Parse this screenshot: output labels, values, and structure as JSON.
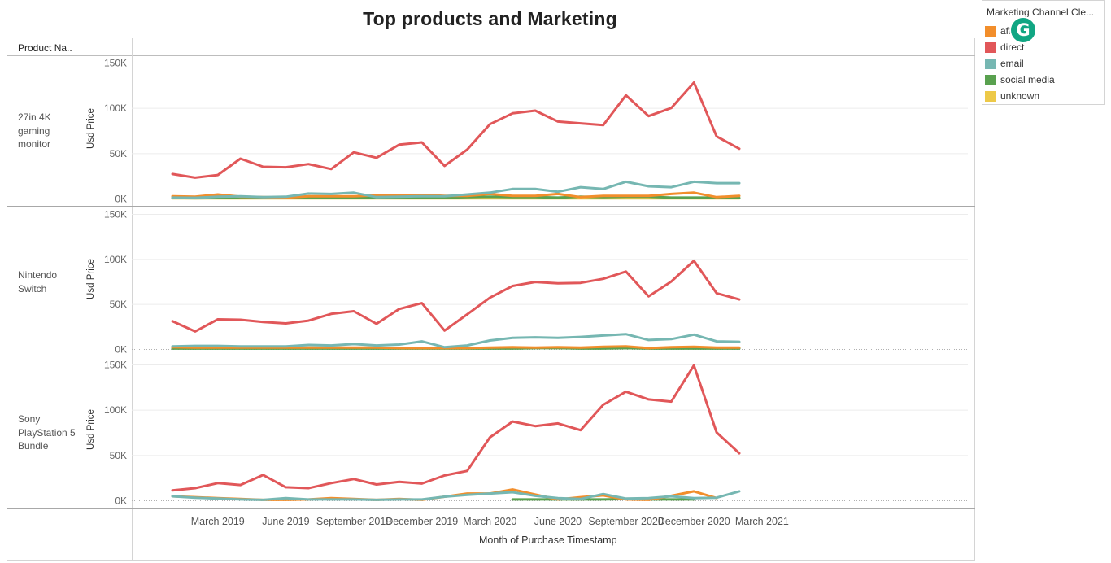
{
  "title": "Top products and Marketing",
  "row_header": "Product Na..",
  "x_axis_title": "Month of Purchase Timestamp",
  "legend": {
    "title": "Marketing Channel Cle...",
    "items": [
      {
        "label": "affiliate",
        "color": "#f28e2b"
      },
      {
        "label": "direct",
        "color": "#e15759"
      },
      {
        "label": "email",
        "color": "#76b7b2"
      },
      {
        "label": "social media",
        "color": "#59a14f"
      },
      {
        "label": "unknown",
        "color": "#edc948"
      }
    ]
  },
  "overlay": {
    "icon": "grammarly-icon",
    "glyph": "G"
  },
  "chart_data": {
    "type": "line",
    "x": [
      "2019-01",
      "2019-02",
      "2019-03",
      "2019-04",
      "2019-05",
      "2019-06",
      "2019-07",
      "2019-08",
      "2019-09",
      "2019-10",
      "2019-11",
      "2019-12",
      "2020-01",
      "2020-02",
      "2020-03",
      "2020-04",
      "2020-05",
      "2020-06",
      "2020-07",
      "2020-08",
      "2020-09",
      "2020-10",
      "2020-11",
      "2020-12",
      "2021-01",
      "2021-02"
    ],
    "x_tick_labels": [
      "March 2019",
      "June 2019",
      "September 2019",
      "December 2019",
      "March 2020",
      "June 2020",
      "September 2020",
      "December 2020",
      "March 2021"
    ],
    "x_tick_positions": [
      "2019-03",
      "2019-06",
      "2019-09",
      "2019-12",
      "2020-03",
      "2020-06",
      "2020-09",
      "2020-12",
      "2021-03"
    ],
    "ylabel": "Usd Price",
    "ylim": [
      0,
      150000
    ],
    "y_ticks": [
      "0K",
      "50K",
      "100K",
      "150K"
    ],
    "grid": true,
    "legend_placement": "top-right",
    "panels": [
      {
        "facet": "27in 4K gaming monitor",
        "series": [
          {
            "name": "direct",
            "values": [
              27000,
              23000,
              26000,
              44000,
              35000,
              34500,
              38000,
              32500,
              51000,
              45000,
              59500,
              62000,
              36000,
              54000,
              82000,
              94000,
              97000,
              85000,
              83000,
              81000,
              114000,
              91000,
              100000,
              128000,
              68500,
              55000
            ]
          },
          {
            "name": "email",
            "values": [
              1000,
              800,
              2000,
              2500,
              1500,
              2000,
              5500,
              5000,
              6500,
              1500,
              2000,
              2500,
              2500,
              4500,
              6500,
              10500,
              10500,
              7500,
              12500,
              10500,
              18500,
              13500,
              12500,
              18500,
              17000,
              17000
            ]
          },
          {
            "name": "affiliate",
            "values": [
              2500,
              2000,
              4500,
              2000,
              1500,
              1000,
              2500,
              2500,
              2500,
              3500,
              3500,
              4000,
              3000,
              3000,
              5000,
              3000,
              3000,
              5000,
              1500,
              3000,
              3000,
              3000,
              5000,
              6500,
              1500,
              3000
            ]
          },
          {
            "name": "social media",
            "values": [
              500,
              400,
              500,
              1000,
              500,
              500,
              500,
              500,
              500,
              500,
              500,
              500,
              1000,
              1500,
              2000,
              1500,
              1500,
              1000,
              2000,
              1500,
              2000,
              2000,
              1000,
              1000,
              1000,
              500
            ]
          },
          {
            "name": "unknown",
            "values": [
              300,
              300,
              300,
              300,
              300,
              300,
              300,
              300,
              300,
              300,
              300,
              300,
              300,
              300,
              300,
              300,
              300,
              300,
              300,
              300,
              300,
              300,
              300,
              300,
              300,
              300
            ]
          }
        ]
      },
      {
        "facet": "Nintendo Switch",
        "series": [
          {
            "name": "direct",
            "values": [
              31000,
              19500,
              33000,
              32500,
              30000,
              28500,
              31500,
              39000,
              42000,
              28000,
              44500,
              51000,
              20500,
              38500,
              57000,
              70000,
              74500,
              73000,
              73500,
              78000,
              86000,
              58500,
              75000,
              98000,
              62000,
              55000
            ]
          },
          {
            "name": "email",
            "values": [
              3000,
              3500,
              3500,
              3000,
              3000,
              3000,
              4500,
              4000,
              5500,
              4000,
              5000,
              8500,
              2000,
              4000,
              9500,
              12500,
              13000,
              12500,
              13500,
              15000,
              16500,
              10000,
              11000,
              16000,
              8500,
              8000
            ]
          },
          {
            "name": "affiliate",
            "values": [
              2000,
              1500,
              1500,
              1500,
              1500,
              1500,
              1500,
              1500,
              1500,
              1500,
              1000,
              1000,
              1000,
              1000,
              1500,
              2000,
              1500,
              2000,
              1500,
              2500,
              3000,
              1000,
              2000,
              2500,
              1500,
              1500
            ]
          },
          {
            "name": "social media",
            "values": [
              500,
              500,
              500,
              500,
              500,
              500,
              500,
              500,
              500,
              500,
              500,
              500,
              500,
              500,
              500,
              500,
              1000,
              1000,
              500,
              500,
              1000,
              500,
              500,
              500,
              500,
              500
            ]
          }
        ]
      },
      {
        "facet": "Sony PlayStation 5 Bundle",
        "series": [
          {
            "name": "direct",
            "values": [
              11000,
              13500,
              19000,
              17000,
              28000,
              14500,
              13500,
              19000,
              23500,
              17500,
              20500,
              18500,
              27500,
              32500,
              69500,
              87000,
              82000,
              85000,
              77500,
              105500,
              120000,
              111500,
              109000,
              149000,
              75000,
              52000
            ]
          },
          {
            "name": "email",
            "values": [
              4500,
              3000,
              2000,
              1000,
              500,
              2500,
              1000,
              1000,
              1000,
              500,
              1000,
              1000,
              4000,
              6000,
              7500,
              9000,
              5000,
              2500,
              1500,
              7000,
              2000,
              2500,
              4500,
              2500,
              3000,
              10000
            ]
          },
          {
            "name": "affiliate",
            "values": [
              4500,
              3500,
              2500,
              1500,
              500,
              500,
              1000,
              2500,
              1500,
              500,
              1500,
              500,
              4000,
              7500,
              7500,
              12000,
              6500,
              1000,
              3500,
              5500,
              1000,
              500,
              5000,
              10000,
              2500,
              null
            ]
          },
          {
            "name": "social media",
            "values": [
              null,
              null,
              null,
              null,
              null,
              null,
              null,
              null,
              null,
              null,
              null,
              null,
              null,
              null,
              null,
              1000,
              1000,
              1000,
              1000,
              1000,
              1500,
              1000,
              1000,
              1000,
              null,
              null
            ]
          }
        ]
      }
    ]
  }
}
